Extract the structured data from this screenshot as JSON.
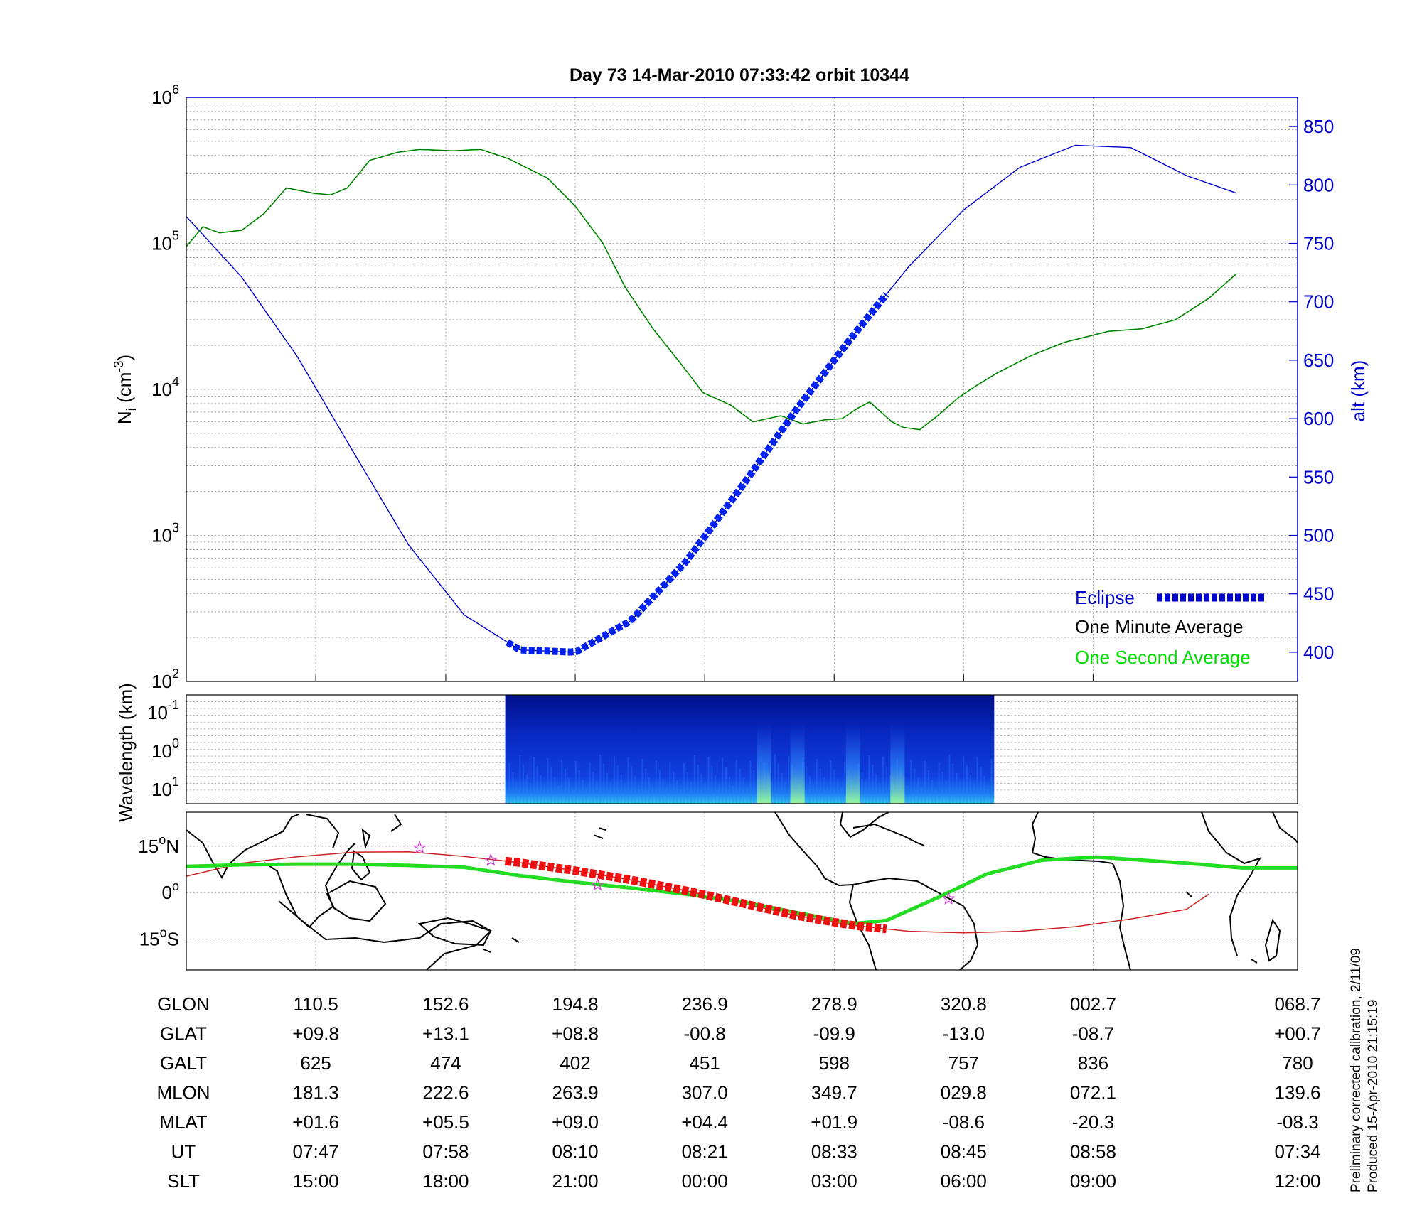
{
  "title": "Day 73  14-Mar-2010 07:33:42   orbit 10344",
  "side_notes": [
    "Preliminary corrected calibration, 2/11/09",
    "Produced 15-Apr-2010 21:15:19"
  ],
  "colors": {
    "density": "#007a00",
    "one_second": "#00e000",
    "altitude": "#0000cc",
    "eclipse": "#0022ee",
    "track": "#cc2222",
    "eclipse_track": "#ee1111",
    "magnetic_equator": "#22dd22",
    "stars": "#cc44cc"
  },
  "chart_data": [
    {
      "type": "line",
      "panel": "density-altitude",
      "ylabel": "N",
      "ylabel_sub": "i",
      "ylabel_unit": "(cm",
      "ylabel_exp": "-3",
      "ylabel_close": ")",
      "ylabel_right": "alt (km)",
      "y_scale": "log",
      "ylim": [
        100,
        1000000
      ],
      "y_ticks": [
        {
          "base": "10",
          "exp": "2",
          "value": 100
        },
        {
          "base": "10",
          "exp": "3",
          "value": 1000
        },
        {
          "base": "10",
          "exp": "4",
          "value": 10000
        },
        {
          "base": "10",
          "exp": "5",
          "value": 100000
        },
        {
          "base": "10",
          "exp": "6",
          "value": 1000000
        }
      ],
      "y2lim": [
        375,
        875
      ],
      "y2_ticks": [
        "400",
        "450",
        "500",
        "550",
        "600",
        "650",
        "700",
        "750",
        "800",
        "850"
      ],
      "xlim": [
        0,
        1
      ],
      "x_ticks": [
        0.1165,
        0.2335,
        0.35,
        0.4665,
        0.583,
        0.6995,
        0.816,
        1.0
      ],
      "grid": true,
      "legend_position": "lower-right",
      "legend": [
        {
          "label": "Eclipse",
          "color": "#0000cc",
          "marker": "thick-dashed"
        },
        {
          "label": "One Minute Average",
          "color": "#000000"
        },
        {
          "label": "One Second Average",
          "color": "#00dd00"
        }
      ],
      "series": [
        {
          "name": "One Minute Average",
          "axis": "left",
          "x": [
            0.0,
            0.015,
            0.03,
            0.05,
            0.07,
            0.09,
            0.115,
            0.13,
            0.145,
            0.165,
            0.19,
            0.21,
            0.24,
            0.265,
            0.29,
            0.325,
            0.35,
            0.375,
            0.395,
            0.42,
            0.445,
            0.465,
            0.49,
            0.51,
            0.535,
            0.555,
            0.575,
            0.59,
            0.605,
            0.615,
            0.625,
            0.635,
            0.645,
            0.66,
            0.675,
            0.695,
            0.71,
            0.73,
            0.76,
            0.79,
            0.83,
            0.86,
            0.89,
            0.92,
            0.945
          ],
          "values": [
            95000,
            130000,
            118000,
            123000,
            160000,
            240000,
            220000,
            215000,
            240000,
            370000,
            420000,
            440000,
            430000,
            440000,
            380000,
            280000,
            180000,
            100000,
            50000,
            26000,
            15000,
            9500,
            7800,
            6000,
            6600,
            5800,
            6200,
            6300,
            7500,
            8200,
            7000,
            6000,
            5500,
            5300,
            6500,
            8800,
            10500,
            13000,
            17000,
            21000,
            25000,
            26000,
            30000,
            42000,
            62000
          ]
        },
        {
          "name": "One Second Average",
          "axis": "left",
          "x": [
            0.0,
            0.015,
            0.03,
            0.05,
            0.07,
            0.09,
            0.115,
            0.13,
            0.145,
            0.165,
            0.19,
            0.21,
            0.24,
            0.265,
            0.29,
            0.325,
            0.35,
            0.375,
            0.395,
            0.42,
            0.445,
            0.465,
            0.49,
            0.51,
            0.535,
            0.555,
            0.575,
            0.59,
            0.605,
            0.615,
            0.625,
            0.635,
            0.645,
            0.66,
            0.675,
            0.695,
            0.71,
            0.73,
            0.76,
            0.79,
            0.83,
            0.86,
            0.89,
            0.92,
            0.945
          ],
          "values": [
            95000,
            130000,
            118000,
            123000,
            160000,
            240000,
            220000,
            215000,
            240000,
            370000,
            420000,
            440000,
            430000,
            440000,
            380000,
            280000,
            180000,
            100000,
            50000,
            26000,
            15000,
            9500,
            7800,
            6000,
            6600,
            5800,
            6200,
            6300,
            7500,
            8200,
            7000,
            6000,
            5500,
            5300,
            6500,
            8800,
            10500,
            13000,
            17000,
            21000,
            25000,
            26000,
            30000,
            42000,
            62000
          ]
        },
        {
          "name": "alt (km)",
          "axis": "right",
          "x": [
            0.0,
            0.05,
            0.1,
            0.15,
            0.2,
            0.25,
            0.3,
            0.35,
            0.4,
            0.45,
            0.5,
            0.55,
            0.6,
            0.65,
            0.7,
            0.75,
            0.8,
            0.85,
            0.9,
            0.945
          ],
          "values": [
            773,
            721,
            653,
            572,
            492,
            432,
            402,
            400,
            427,
            478,
            542,
            609,
            671,
            730,
            779,
            815,
            834,
            832,
            808,
            793
          ]
        },
        {
          "name": "Eclipse",
          "axis": "right",
          "x_range": [
            0.289,
            0.63
          ]
        }
      ]
    },
    {
      "type": "heatmap",
      "panel": "spectrogram",
      "ylabel": "Wavelength (km)",
      "y_ticks": [
        {
          "base": "10",
          "exp": "-1"
        },
        {
          "base": "10",
          "exp": "0"
        },
        {
          "base": "10",
          "exp": "1"
        }
      ],
      "x_range": [
        0.287,
        0.727
      ],
      "colormap": "jet",
      "bright_bands": [
        0.52,
        0.55,
        0.6,
        0.64
      ]
    },
    {
      "type": "line",
      "panel": "ground-track-map",
      "y_ticks": [
        {
          "label": "15",
          "deg": "o",
          "hem": "N",
          "lat": 15
        },
        {
          "label": "0",
          "deg": "o",
          "hem": "",
          "lat": 0
        },
        {
          "label": "15",
          "deg": "o",
          "hem": "S",
          "lat": -15
        }
      ],
      "ylim": [
        -25,
        26
      ],
      "series": [
        {
          "name": "orbit track",
          "x": [
            0.0,
            0.05,
            0.1,
            0.15,
            0.2,
            0.25,
            0.3,
            0.35,
            0.4,
            0.45,
            0.5,
            0.55,
            0.6,
            0.65,
            0.7,
            0.75,
            0.8,
            0.85,
            0.9,
            0.92
          ],
          "lat": [
            5.3,
            9.5,
            11.6,
            13.1,
            13.2,
            11.7,
            9.7,
            7.1,
            4.1,
            0.6,
            -3.4,
            -7.5,
            -10.6,
            -12.5,
            -13.0,
            -12.5,
            -11.0,
            -8.5,
            -5.4,
            -0.5
          ]
        },
        {
          "name": "magnetic equator",
          "x": [
            0.0,
            0.05,
            0.1,
            0.15,
            0.2,
            0.25,
            0.3,
            0.35,
            0.4,
            0.45,
            0.5,
            0.55,
            0.6,
            0.63,
            0.68,
            0.72,
            0.77,
            0.82,
            0.86,
            0.9,
            0.95,
            1.0
          ],
          "lat": [
            8.5,
            9.0,
            9.2,
            9.2,
            8.8,
            8.2,
            5.5,
            3.4,
            1.5,
            -0.5,
            -3.0,
            -6.5,
            -10.0,
            -9.0,
            -1.0,
            6.0,
            10.5,
            11.5,
            10.5,
            9.5,
            8.0,
            8.0
          ]
        }
      ],
      "eclipse_x_range": [
        0.287,
        0.63
      ],
      "stars": [
        {
          "x": 0.21,
          "lat": 14.5
        },
        {
          "x": 0.274,
          "lat": 10.5
        },
        {
          "x": 0.37,
          "lat": 2.5
        },
        {
          "x": 0.686,
          "lat": -2.0
        }
      ]
    }
  ],
  "table": {
    "row_labels": [
      "GLON",
      "GLAT",
      "GALT",
      "MLON",
      "MLAT",
      "UT",
      "SLT"
    ],
    "columns": [
      [
        "110.5",
        "+09.8",
        "625",
        "181.3",
        "+01.6",
        "07:47",
        "15:00"
      ],
      [
        "152.6",
        "+13.1",
        "474",
        "222.6",
        "+05.5",
        "07:58",
        "18:00"
      ],
      [
        "194.8",
        "+08.8",
        "402",
        "263.9",
        "+09.0",
        "08:10",
        "21:00"
      ],
      [
        "236.9",
        "-00.8",
        "451",
        "307.0",
        "+04.4",
        "08:21",
        "00:00"
      ],
      [
        "278.9",
        "-09.9",
        "598",
        "349.7",
        "+01.9",
        "08:33",
        "03:00"
      ],
      [
        "320.8",
        "-13.0",
        "757",
        "029.8",
        "-08.6",
        "08:45",
        "06:00"
      ],
      [
        "002.7",
        "-08.7",
        "836",
        "072.1",
        "-20.3",
        "08:58",
        "09:00"
      ],
      [
        "068.7",
        "+00.7",
        "780",
        "139.6",
        "-08.3",
        "07:34",
        "12:00"
      ]
    ]
  }
}
